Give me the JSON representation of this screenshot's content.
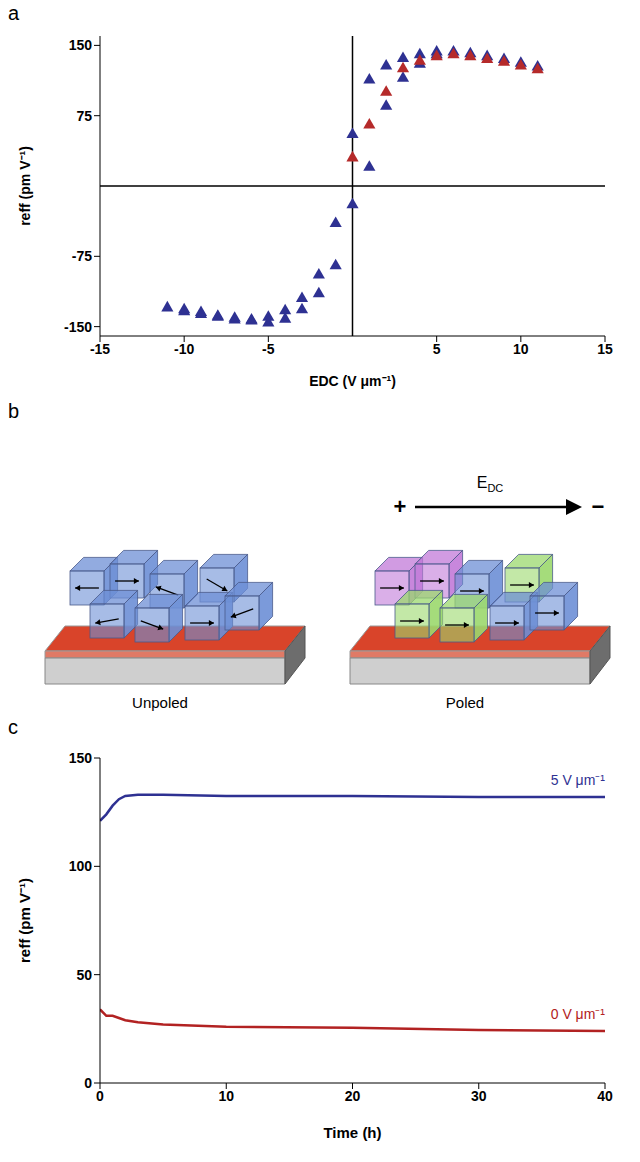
{
  "chart_data": [
    {
      "panel": "a",
      "type": "scatter",
      "x_label": "EDC (V μm⁻¹)",
      "y_label": "reff (pm V⁻¹)",
      "xlim": [
        -15,
        15
      ],
      "xticks": [
        -15,
        -10,
        -5,
        5,
        10,
        15
      ],
      "ylim": [
        -160,
        160
      ],
      "yticks": [
        -150,
        -75,
        75,
        150
      ],
      "series": [
        {
          "color": "#2e3192",
          "marker": "triangle",
          "x": [
            11,
            10,
            9,
            8,
            7,
            6,
            5,
            4,
            3,
            2,
            1,
            0,
            -1,
            -2,
            -3,
            -4,
            -5,
            -6,
            -7,
            -8,
            -9,
            -10,
            -11,
            -10,
            -9,
            -8,
            -7,
            -6,
            -5,
            -4,
            -3,
            -2,
            -1,
            0,
            1,
            2,
            3,
            4,
            5
          ],
          "values": [
            127,
            131,
            135,
            138,
            141,
            143,
            143,
            140,
            136,
            128,
            113,
            55,
            -40,
            -95,
            -120,
            -133,
            -140,
            -143,
            -143,
            -140,
            -137,
            -134,
            -130,
            -132,
            -135,
            -139,
            -141,
            -144,
            -146,
            -142,
            -132,
            -115,
            -85,
            -20,
            20,
            85,
            115,
            130,
            140
          ]
        },
        {
          "color": "#b52a2a",
          "marker": "triangle",
          "x": [
            0,
            1,
            2,
            3,
            4,
            5,
            6,
            7,
            8,
            9,
            10,
            11
          ],
          "values": [
            30,
            65,
            100,
            125,
            133,
            138,
            140,
            138,
            135,
            132,
            128,
            124
          ]
        }
      ]
    },
    {
      "panel": "b",
      "type": "diagram",
      "labels": [
        "Unpoled",
        "Poled"
      ],
      "field_label": "E",
      "field_subscript": "DC",
      "plus": "+",
      "minus": "−"
    },
    {
      "panel": "c",
      "type": "line",
      "x_label": "Time (h)",
      "y_label": "reff (pm V⁻¹)",
      "xlim": [
        0,
        40
      ],
      "xticks": [
        0,
        10,
        20,
        30,
        40
      ],
      "ylim": [
        0,
        150
      ],
      "yticks": [
        0,
        50,
        100,
        150
      ],
      "x": [
        0,
        0.5,
        1,
        1.5,
        2,
        3,
        5,
        10,
        20,
        30,
        40
      ],
      "series": [
        {
          "name": "5 V μm⁻¹",
          "color": "#2e3192",
          "values": [
            121,
            124,
            128,
            131,
            132.5,
            133,
            133,
            132.5,
            132.5,
            132,
            132
          ]
        },
        {
          "name": "0 V μm⁻¹",
          "color": "#b22222",
          "values": [
            34,
            31,
            31,
            30,
            29,
            28,
            27,
            26,
            25.5,
            24.5,
            24
          ]
        }
      ]
    }
  ]
}
